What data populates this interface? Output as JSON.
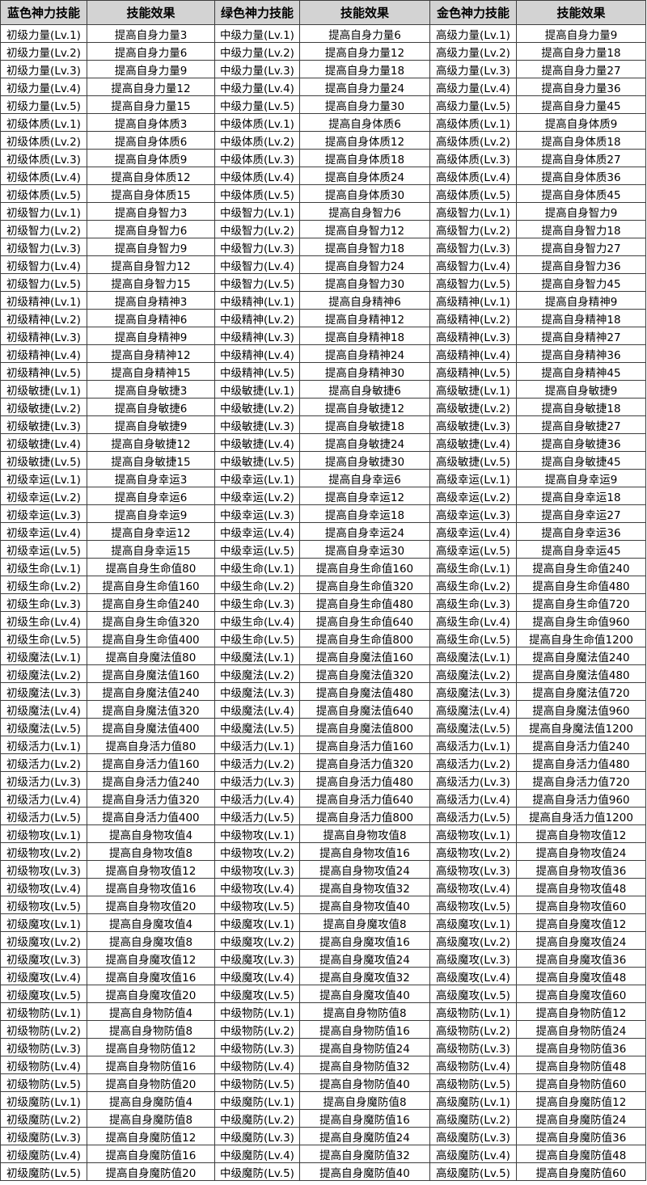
{
  "colors": {
    "header_bg": "#d3d3d3",
    "border": "#3d3d3d",
    "text": "#000000",
    "row_bg": "#ffffff"
  },
  "table": {
    "headers": [
      "蓝色神力技能",
      "技能效果",
      "绿色神力技能",
      "技能效果",
      "金色神力技能",
      "技能效果"
    ],
    "rows": [
      [
        "初级力量(Lv.1)",
        "提高自身力量3",
        "中级力量(Lv.1)",
        "提高自身力量6",
        "高级力量(Lv.1)",
        "提高自身力量9"
      ],
      [
        "初级力量(Lv.2)",
        "提高自身力量6",
        "中级力量(Lv.2)",
        "提高自身力量12",
        "高级力量(Lv.2)",
        "提高自身力量18"
      ],
      [
        "初级力量(Lv.3)",
        "提高自身力量9",
        "中级力量(Lv.3)",
        "提高自身力量18",
        "高级力量(Lv.3)",
        "提高自身力量27"
      ],
      [
        "初级力量(Lv.4)",
        "提高自身力量12",
        "中级力量(Lv.4)",
        "提高自身力量24",
        "高级力量(Lv.4)",
        "提高自身力量36"
      ],
      [
        "初级力量(Lv.5)",
        "提高自身力量15",
        "中级力量(Lv.5)",
        "提高自身力量30",
        "高级力量(Lv.5)",
        "提高自身力量45"
      ],
      [
        "初级体质(Lv.1)",
        "提高自身体质3",
        "中级体质(Lv.1)",
        "提高自身体质6",
        "高级体质(Lv.1)",
        "提高自身体质9"
      ],
      [
        "初级体质(Lv.2)",
        "提高自身体质6",
        "中级体质(Lv.2)",
        "提高自身体质12",
        "高级体质(Lv.2)",
        "提高自身体质18"
      ],
      [
        "初级体质(Lv.3)",
        "提高自身体质9",
        "中级体质(Lv.3)",
        "提高自身体质18",
        "高级体质(Lv.3)",
        "提高自身体质27"
      ],
      [
        "初级体质(Lv.4)",
        "提高自身体质12",
        "中级体质(Lv.4)",
        "提高自身体质24",
        "高级体质(Lv.4)",
        "提高自身体质36"
      ],
      [
        "初级体质(Lv.5)",
        "提高自身体质15",
        "中级体质(Lv.5)",
        "提高自身体质30",
        "高级体质(Lv.5)",
        "提高自身体质45"
      ],
      [
        "初级智力(Lv.1)",
        "提高自身智力3",
        "中级智力(Lv.1)",
        "提高自身智力6",
        "高级智力(Lv.1)",
        "提高自身智力9"
      ],
      [
        "初级智力(Lv.2)",
        "提高自身智力6",
        "中级智力(Lv.2)",
        "提高自身智力12",
        "高级智力(Lv.2)",
        "提高自身智力18"
      ],
      [
        "初级智力(Lv.3)",
        "提高自身智力9",
        "中级智力(Lv.3)",
        "提高自身智力18",
        "高级智力(Lv.3)",
        "提高自身智力27"
      ],
      [
        "初级智力(Lv.4)",
        "提高自身智力12",
        "中级智力(Lv.4)",
        "提高自身智力24",
        "高级智力(Lv.4)",
        "提高自身智力36"
      ],
      [
        "初级智力(Lv.5)",
        "提高自身智力15",
        "中级智力(Lv.5)",
        "提高自身智力30",
        "高级智力(Lv.5)",
        "提高自身智力45"
      ],
      [
        "初级精神(Lv.1)",
        "提高自身精神3",
        "中级精神(Lv.1)",
        "提高自身精神6",
        "高级精神(Lv.1)",
        "提高自身精神9"
      ],
      [
        "初级精神(Lv.2)",
        "提高自身精神6",
        "中级精神(Lv.2)",
        "提高自身精神12",
        "高级精神(Lv.2)",
        "提高自身精神18"
      ],
      [
        "初级精神(Lv.3)",
        "提高自身精神9",
        "中级精神(Lv.3)",
        "提高自身精神18",
        "高级精神(Lv.3)",
        "提高自身精神27"
      ],
      [
        "初级精神(Lv.4)",
        "提高自身精神12",
        "中级精神(Lv.4)",
        "提高自身精神24",
        "高级精神(Lv.4)",
        "提高自身精神36"
      ],
      [
        "初级精神(Lv.5)",
        "提高自身精神15",
        "中级精神(Lv.5)",
        "提高自身精神30",
        "高级精神(Lv.5)",
        "提高自身精神45"
      ],
      [
        "初级敏捷(Lv.1)",
        "提高自身敏捷3",
        "中级敏捷(Lv.1)",
        "提高自身敏捷6",
        "高级敏捷(Lv.1)",
        "提高自身敏捷9"
      ],
      [
        "初级敏捷(Lv.2)",
        "提高自身敏捷6",
        "中级敏捷(Lv.2)",
        "提高自身敏捷12",
        "高级敏捷(Lv.2)",
        "提高自身敏捷18"
      ],
      [
        "初级敏捷(Lv.3)",
        "提高自身敏捷9",
        "中级敏捷(Lv.3)",
        "提高自身敏捷18",
        "高级敏捷(Lv.3)",
        "提高自身敏捷27"
      ],
      [
        "初级敏捷(Lv.4)",
        "提高自身敏捷12",
        "中级敏捷(Lv.4)",
        "提高自身敏捷24",
        "高级敏捷(Lv.4)",
        "提高自身敏捷36"
      ],
      [
        "初级敏捷(Lv.5)",
        "提高自身敏捷15",
        "中级敏捷(Lv.5)",
        "提高自身敏捷30",
        "高级敏捷(Lv.5)",
        "提高自身敏捷45"
      ],
      [
        "初级幸运(Lv.1)",
        "提高自身幸运3",
        "中级幸运(Lv.1)",
        "提高自身幸运6",
        "高级幸运(Lv.1)",
        "提高自身幸运9"
      ],
      [
        "初级幸运(Lv.2)",
        "提高自身幸运6",
        "中级幸运(Lv.2)",
        "提高自身幸运12",
        "高级幸运(Lv.2)",
        "提高自身幸运18"
      ],
      [
        "初级幸运(Lv.3)",
        "提高自身幸运9",
        "中级幸运(Lv.3)",
        "提高自身幸运18",
        "高级幸运(Lv.3)",
        "提高自身幸运27"
      ],
      [
        "初级幸运(Lv.4)",
        "提高自身幸运12",
        "中级幸运(Lv.4)",
        "提高自身幸运24",
        "高级幸运(Lv.4)",
        "提高自身幸运36"
      ],
      [
        "初级幸运(Lv.5)",
        "提高自身幸运15",
        "中级幸运(Lv.5)",
        "提高自身幸运30",
        "高级幸运(Lv.5)",
        "提高自身幸运45"
      ],
      [
        "初级生命(Lv.1)",
        "提高自身生命值80",
        "中级生命(Lv.1)",
        "提高自身生命值160",
        "高级生命(Lv.1)",
        "提高自身生命值240"
      ],
      [
        "初级生命(Lv.2)",
        "提高自身生命值160",
        "中级生命(Lv.2)",
        "提高自身生命值320",
        "高级生命(Lv.2)",
        "提高自身生命值480"
      ],
      [
        "初级生命(Lv.3)",
        "提高自身生命值240",
        "中级生命(Lv.3)",
        "提高自身生命值480",
        "高级生命(Lv.3)",
        "提高自身生命值720"
      ],
      [
        "初级生命(Lv.4)",
        "提高自身生命值320",
        "中级生命(Lv.4)",
        "提高自身生命值640",
        "高级生命(Lv.4)",
        "提高自身生命值960"
      ],
      [
        "初级生命(Lv.5)",
        "提高自身生命值400",
        "中级生命(Lv.5)",
        "提高自身生命值800",
        "高级生命(Lv.5)",
        "提高自身生命值1200"
      ],
      [
        "初级魔法(Lv.1)",
        "提高自身魔法值80",
        "中级魔法(Lv.1)",
        "提高自身魔法值160",
        "高级魔法(Lv.1)",
        "提高自身魔法值240"
      ],
      [
        "初级魔法(Lv.2)",
        "提高自身魔法值160",
        "中级魔法(Lv.2)",
        "提高自身魔法值320",
        "高级魔法(Lv.2)",
        "提高自身魔法值480"
      ],
      [
        "初级魔法(Lv.3)",
        "提高自身魔法值240",
        "中级魔法(Lv.3)",
        "提高自身魔法值480",
        "高级魔法(Lv.3)",
        "提高自身魔法值720"
      ],
      [
        "初级魔法(Lv.4)",
        "提高自身魔法值320",
        "中级魔法(Lv.4)",
        "提高自身魔法值640",
        "高级魔法(Lv.4)",
        "提高自身魔法值960"
      ],
      [
        "初级魔法(Lv.5)",
        "提高自身魔法值400",
        "中级魔法(Lv.5)",
        "提高自身魔法值800",
        "高级魔法(Lv.5)",
        "提高自身魔法值1200"
      ],
      [
        "初级活力(Lv.1)",
        "提高自身活力值80",
        "中级活力(Lv.1)",
        "提高自身活力值160",
        "高级活力(Lv.1)",
        "提高自身活力值240"
      ],
      [
        "初级活力(Lv.2)",
        "提高自身活力值160",
        "中级活力(Lv.2)",
        "提高自身活力值320",
        "高级活力(Lv.2)",
        "提高自身活力值480"
      ],
      [
        "初级活力(Lv.3)",
        "提高自身活力值240",
        "中级活力(Lv.3)",
        "提高自身活力值480",
        "高级活力(Lv.3)",
        "提高自身活力值720"
      ],
      [
        "初级活力(Lv.4)",
        "提高自身活力值320",
        "中级活力(Lv.4)",
        "提高自身活力值640",
        "高级活力(Lv.4)",
        "提高自身活力值960"
      ],
      [
        "初级活力(Lv.5)",
        "提高自身活力值400",
        "中级活力(Lv.5)",
        "提高自身活力值800",
        "高级活力(Lv.5)",
        "提高自身活力值1200"
      ],
      [
        "初级物攻(Lv.1)",
        "提高自身物攻值4",
        "中级物攻(Lv.1)",
        "提高自身物攻值8",
        "高级物攻(Lv.1)",
        "提高自身物攻值12"
      ],
      [
        "初级物攻(Lv.2)",
        "提高自身物攻值8",
        "中级物攻(Lv.2)",
        "提高自身物攻值16",
        "高级物攻(Lv.2)",
        "提高自身物攻值24"
      ],
      [
        "初级物攻(Lv.3)",
        "提高自身物攻值12",
        "中级物攻(Lv.3)",
        "提高自身物攻值24",
        "高级物攻(Lv.3)",
        "提高自身物攻值36"
      ],
      [
        "初级物攻(Lv.4)",
        "提高自身物攻值16",
        "中级物攻(Lv.4)",
        "提高自身物攻值32",
        "高级物攻(Lv.4)",
        "提高自身物攻值48"
      ],
      [
        "初级物攻(Lv.5)",
        "提高自身物攻值20",
        "中级物攻(Lv.5)",
        "提高自身物攻值40",
        "高级物攻(Lv.5)",
        "提高自身物攻值60"
      ],
      [
        "初级魔攻(Lv.1)",
        "提高自身魔攻值4",
        "中级魔攻(Lv.1)",
        "提高自身魔攻值8",
        "高级魔攻(Lv.1)",
        "提高自身魔攻值12"
      ],
      [
        "初级魔攻(Lv.2)",
        "提高自身魔攻值8",
        "中级魔攻(Lv.2)",
        "提高自身魔攻值16",
        "高级魔攻(Lv.2)",
        "提高自身魔攻值24"
      ],
      [
        "初级魔攻(Lv.3)",
        "提高自身魔攻值12",
        "中级魔攻(Lv.3)",
        "提高自身魔攻值24",
        "高级魔攻(Lv.3)",
        "提高自身魔攻值36"
      ],
      [
        "初级魔攻(Lv.4)",
        "提高自身魔攻值16",
        "中级魔攻(Lv.4)",
        "提高自身魔攻值32",
        "高级魔攻(Lv.4)",
        "提高自身魔攻值48"
      ],
      [
        "初级魔攻(Lv.5)",
        "提高自身魔攻值20",
        "中级魔攻(Lv.5)",
        "提高自身魔攻值40",
        "高级魔攻(Lv.5)",
        "提高自身魔攻值60"
      ],
      [
        "初级物防(Lv.1)",
        "提高自身物防值4",
        "中级物防(Lv.1)",
        "提高自身物防值8",
        "高级物防(Lv.1)",
        "提高自身物防值12"
      ],
      [
        "初级物防(Lv.2)",
        "提高自身物防值8",
        "中级物防(Lv.2)",
        "提高自身物防值16",
        "高级物防(Lv.2)",
        "提高自身物防值24"
      ],
      [
        "初级物防(Lv.3)",
        "提高自身物防值12",
        "中级物防(Lv.3)",
        "提高自身物防值24",
        "高级物防(Lv.3)",
        "提高自身物防值36"
      ],
      [
        "初级物防(Lv.4)",
        "提高自身物防值16",
        "中级物防(Lv.4)",
        "提高自身物防值32",
        "高级物防(Lv.4)",
        "提高自身物防值48"
      ],
      [
        "初级物防(Lv.5)",
        "提高自身物防值20",
        "中级物防(Lv.5)",
        "提高自身物防值40",
        "高级物防(Lv.5)",
        "提高自身物防值60"
      ],
      [
        "初级魔防(Lv.1)",
        "提高自身魔防值4",
        "中级魔防(Lv.1)",
        "提高自身魔防值8",
        "高级魔防(Lv.1)",
        "提高自身魔防值12"
      ],
      [
        "初级魔防(Lv.2)",
        "提高自身魔防值8",
        "中级魔防(Lv.2)",
        "提高自身魔防值16",
        "高级魔防(Lv.2)",
        "提高自身魔防值24"
      ],
      [
        "初级魔防(Lv.3)",
        "提高自身魔防值12",
        "中级魔防(Lv.3)",
        "提高自身魔防值24",
        "高级魔防(Lv.3)",
        "提高自身魔防值36"
      ],
      [
        "初级魔防(Lv.4)",
        "提高自身魔防值16",
        "中级魔防(Lv.4)",
        "提高自身魔防值32",
        "高级魔防(Lv.4)",
        "提高自身魔防值48"
      ],
      [
        "初级魔防(Lv.5)",
        "提高自身魔防值20",
        "中级魔防(Lv.5)",
        "提高自身魔防值40",
        "高级魔防(Lv.5)",
        "提高自身魔防值60"
      ]
    ]
  }
}
